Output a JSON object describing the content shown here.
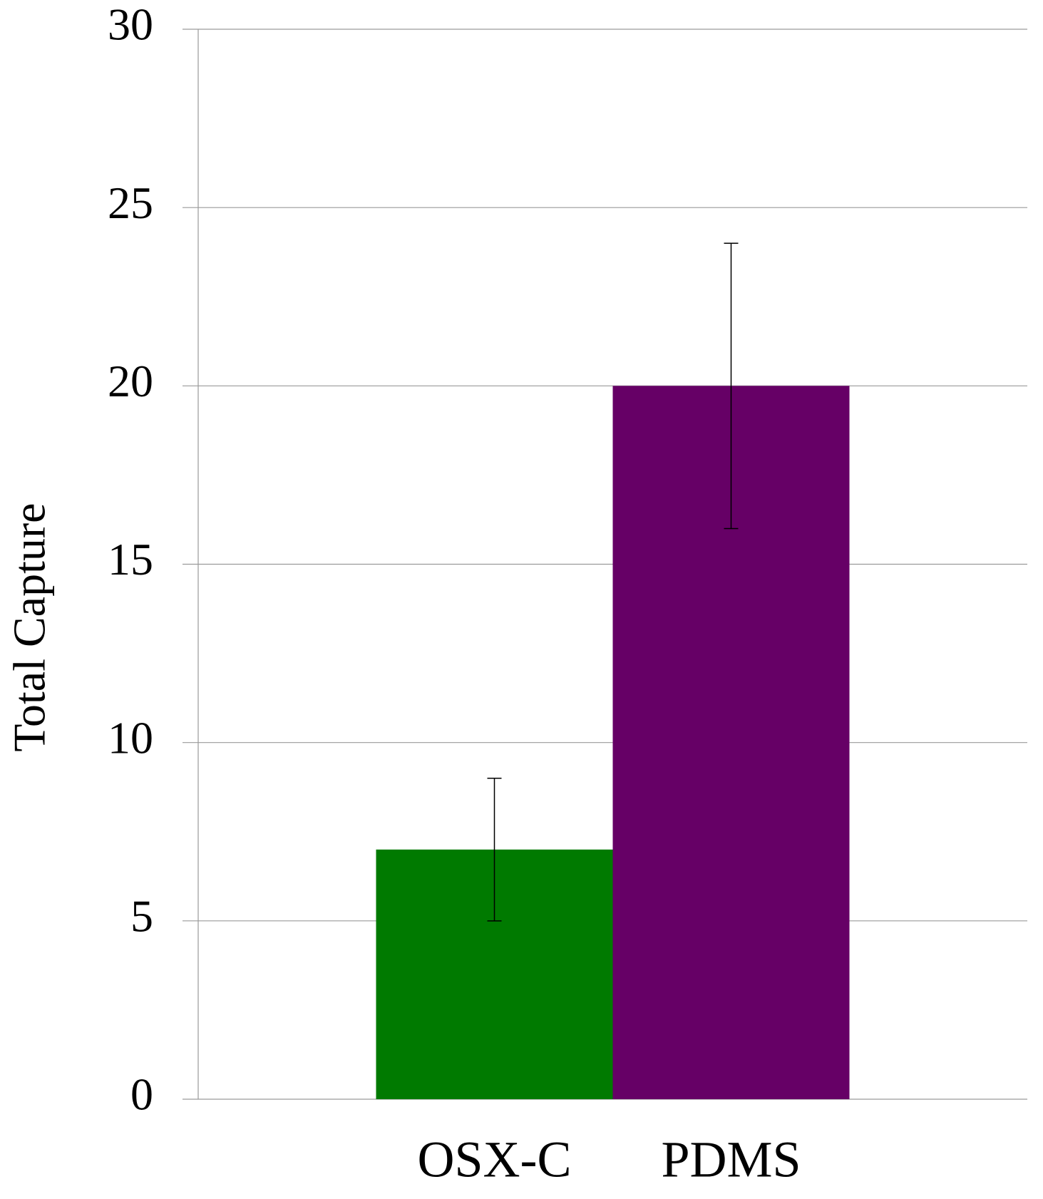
{
  "chart_data": {
    "type": "bar",
    "y_label": "Total Capture",
    "categories": [
      "OSX-C",
      "PDMS"
    ],
    "values": [
      7,
      20
    ],
    "errors": [
      2,
      4
    ],
    "colors": [
      "#007a00",
      "#660066"
    ],
    "ylim": [
      0,
      30
    ],
    "yticks": [
      0,
      5,
      10,
      15,
      20,
      25,
      30
    ],
    "grid": true
  }
}
